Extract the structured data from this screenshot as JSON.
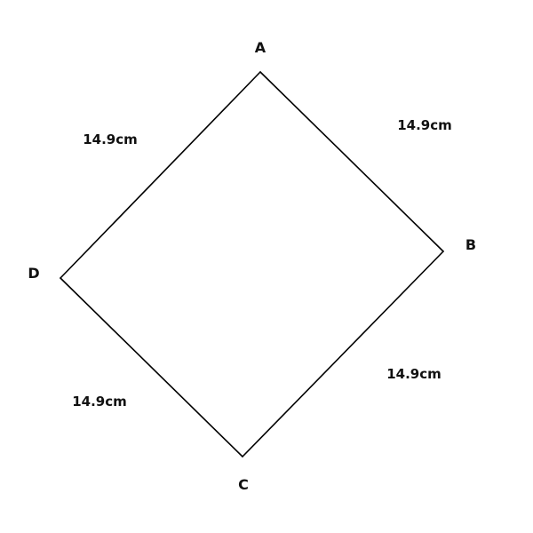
{
  "diagram": {
    "shape": "rhombus",
    "vertices": {
      "a": "A",
      "b": "B",
      "c": "C",
      "d": "D"
    },
    "side_labels": {
      "ab": "14.9cm",
      "bc": "14.9cm",
      "cd": "14.9cm",
      "da": "14.9cm"
    },
    "stroke_color": "#000000"
  }
}
